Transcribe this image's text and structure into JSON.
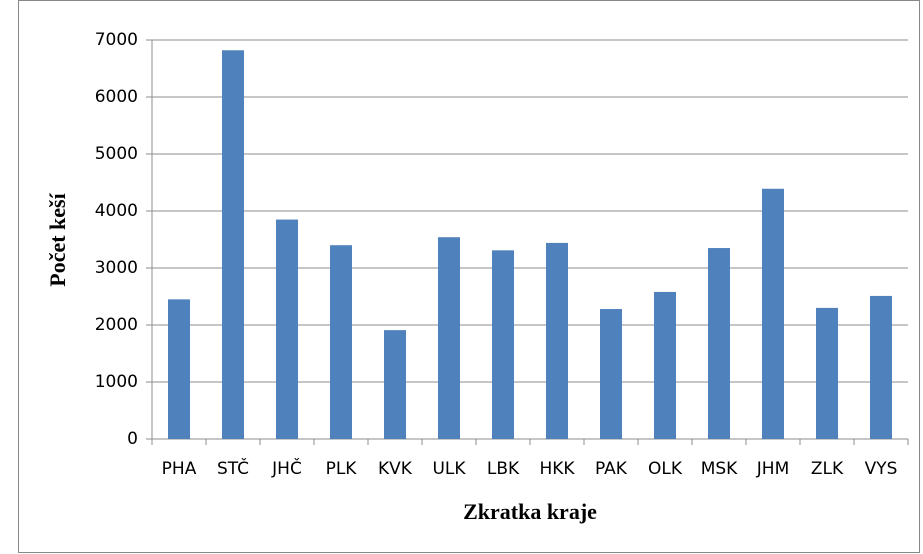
{
  "chart_data": {
    "type": "bar",
    "xlabel": "Zkratka kraje",
    "ylabel": "Počet keší",
    "categories": [
      "PHA",
      "STČ",
      "JHČ",
      "PLK",
      "KVK",
      "ULK",
      "LBK",
      "HKK",
      "PAK",
      "OLK",
      "MSK",
      "JHM",
      "ZLK",
      "VYS"
    ],
    "values": [
      2450,
      6820,
      3850,
      3400,
      1910,
      3540,
      3310,
      3440,
      2280,
      2580,
      3350,
      4390,
      2300,
      2510
    ],
    "color": "#4f81bd",
    "ylim": [
      0,
      7000
    ],
    "yticks": [
      0,
      1000,
      2000,
      3000,
      4000,
      5000,
      6000,
      7000
    ],
    "grid": true
  }
}
